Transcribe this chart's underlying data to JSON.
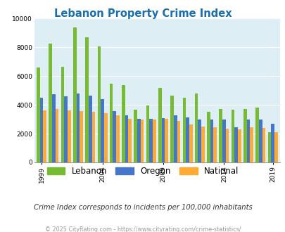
{
  "title": "Lebanon Property Crime Index",
  "title_color": "#1a6faf",
  "subtitle": "Crime Index corresponds to incidents per 100,000 inhabitants",
  "footer": "© 2025 CityRating.com - https://www.cityrating.com/crime-statistics/",
  "years": [
    1999,
    2000,
    2001,
    2002,
    2003,
    2004,
    2005,
    2006,
    2007,
    2008,
    2009,
    2010,
    2011,
    2012,
    2013,
    2014,
    2015,
    2016,
    2017,
    2019
  ],
  "x_tick_years": [
    1999,
    2004,
    2009,
    2014,
    2019
  ],
  "lebanon": [
    6600,
    8250,
    6650,
    9380,
    8680,
    8050,
    5480,
    5360,
    3650,
    3950,
    5200,
    4620,
    4500,
    4800,
    3500,
    3700,
    3650,
    3700,
    3800,
    2100
  ],
  "oregon": [
    4520,
    4750,
    4600,
    4780,
    4640,
    4380,
    3560,
    3280,
    3020,
    3050,
    3060,
    3280,
    3120,
    2970,
    2960,
    2980,
    2420,
    2980,
    2960,
    2700
  ],
  "national": [
    3600,
    3700,
    3600,
    3560,
    3500,
    3400,
    3290,
    3020,
    3000,
    3000,
    3020,
    2870,
    2650,
    2500,
    2440,
    2350,
    2300,
    2420,
    2380,
    2100
  ],
  "lebanon_color": "#77bb33",
  "oregon_color": "#4477cc",
  "national_color": "#ffaa33",
  "ylim": [
    0,
    10000
  ],
  "yticks": [
    0,
    2000,
    4000,
    6000,
    8000,
    10000
  ],
  "bg_color": "#deeef5",
  "bar_width": 0.27,
  "legend_labels": [
    "Lebanon",
    "Oregon",
    "National"
  ]
}
